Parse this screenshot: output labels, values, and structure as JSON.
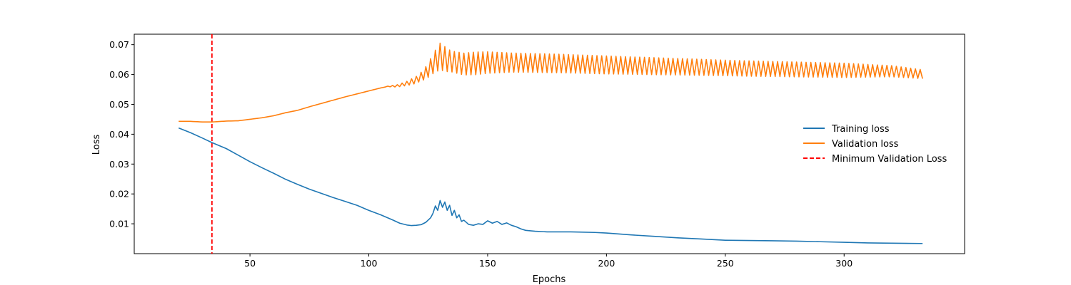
{
  "chart_data": {
    "type": "line",
    "xlabel": "Epochs",
    "ylabel": "Loss",
    "xlim": [
      1.3,
      350.7
    ],
    "ylim": [
      0.0,
      0.0735
    ],
    "x_ticks": [
      50,
      100,
      150,
      200,
      250,
      300
    ],
    "y_ticks": [
      0.01,
      0.02,
      0.03,
      0.04,
      0.05,
      0.06,
      0.07
    ],
    "grid": false,
    "legend_position": "center-right",
    "series": [
      {
        "name": "Training loss",
        "color": "#1f77b4",
        "x": [
          20,
          25,
          30,
          34,
          40,
          45,
          50,
          55,
          60,
          65,
          70,
          75,
          80,
          85,
          90,
          95,
          100,
          105,
          110,
          113,
          116,
          118,
          120,
          122,
          124,
          126,
          127,
          128,
          129,
          130,
          131,
          132,
          133,
          134,
          135,
          136,
          137,
          138,
          139,
          140,
          142,
          144,
          146,
          148,
          150,
          152,
          154,
          156,
          158,
          160,
          162,
          164,
          166,
          170,
          175,
          180,
          185,
          190,
          195,
          200,
          210,
          220,
          230,
          240,
          250,
          260,
          270,
          280,
          290,
          300,
          310,
          320,
          333
        ],
        "y": [
          0.0421,
          0.0405,
          0.0387,
          0.0372,
          0.0352,
          0.033,
          0.0308,
          0.0288,
          0.0269,
          0.0249,
          0.0232,
          0.0216,
          0.0202,
          0.0188,
          0.0175,
          0.0162,
          0.0145,
          0.013,
          0.0113,
          0.0102,
          0.0096,
          0.0094,
          0.0095,
          0.0097,
          0.0105,
          0.012,
          0.0135,
          0.016,
          0.0145,
          0.0178,
          0.0155,
          0.0173,
          0.0145,
          0.0162,
          0.0128,
          0.0145,
          0.012,
          0.013,
          0.0108,
          0.0112,
          0.0098,
          0.0095,
          0.01,
          0.0098,
          0.011,
          0.0102,
          0.0108,
          0.0098,
          0.0103,
          0.0095,
          0.009,
          0.0083,
          0.0078,
          0.0075,
          0.0073,
          0.0073,
          0.0073,
          0.0072,
          0.0071,
          0.0069,
          0.0063,
          0.0058,
          0.0053,
          0.0049,
          0.0045,
          0.0044,
          0.0043,
          0.0042,
          0.004,
          0.0038,
          0.0036,
          0.0035,
          0.0034
        ]
      },
      {
        "name": "Validation loss",
        "color": "#ff7f0e",
        "oscillation": {
          "start_x": 108,
          "period": 2
        },
        "x": [
          20,
          25,
          30,
          34,
          40,
          45,
          50,
          55,
          60,
          65,
          70,
          75,
          80,
          85,
          90,
          95,
          100,
          105,
          108,
          112,
          116,
          120,
          124,
          128,
          130,
          134,
          140,
          150,
          160,
          180,
          200,
          220,
          240,
          260,
          280,
          300,
          320,
          333
        ],
        "y": [
          0.0443,
          0.0443,
          0.0441,
          0.0441,
          0.0444,
          0.0445,
          0.045,
          0.0455,
          0.0462,
          0.0472,
          0.048,
          0.0492,
          0.0503,
          0.0514,
          0.0525,
          0.0535,
          0.0545,
          0.0555,
          0.056,
          0.0562,
          0.057,
          0.0582,
          0.0605,
          0.0645,
          0.066,
          0.0645,
          0.0635,
          0.064,
          0.064,
          0.0637,
          0.0632,
          0.0628,
          0.0624,
          0.062,
          0.0617,
          0.0614,
          0.0611,
          0.0601
        ],
        "amplitude_x": [
          20,
          108,
          115,
          122,
          126,
          130,
          135,
          145,
          160,
          200,
          250,
          300,
          333
        ],
        "amplitude_y": [
          0,
          0.0001,
          0.0006,
          0.0014,
          0.0028,
          0.0045,
          0.0035,
          0.0038,
          0.0032,
          0.003,
          0.0026,
          0.0024,
          0.0015
        ]
      }
    ],
    "reference_lines": [
      {
        "name": "Minimum Validation Loss",
        "orientation": "vertical",
        "x": 34,
        "color": "#ff0000",
        "style": "dashed"
      }
    ]
  }
}
